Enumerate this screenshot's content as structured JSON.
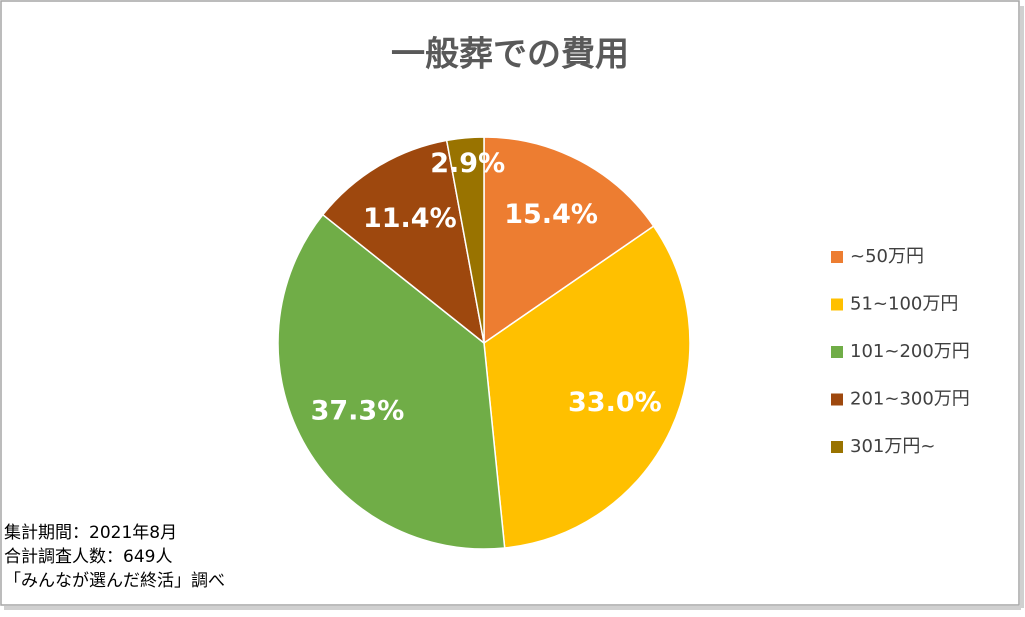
{
  "chart_data": {
    "type": "pie",
    "title": "一般葬での費用",
    "categories": [
      "~50万円",
      "51~100万円",
      "101~200万円",
      "201~300万円",
      "301万円~"
    ],
    "values": [
      15.4,
      33.0,
      37.3,
      11.4,
      2.9
    ],
    "value_labels": [
      "15.4%",
      "33.0%",
      "37.3%",
      "11.4%",
      "2.9%"
    ],
    "colors": [
      "#ED7D31",
      "#FFC000",
      "#70AD47",
      "#9E480E",
      "#997300"
    ],
    "legend": "right",
    "notes": [
      "集計期間：2021年8月",
      "合計調査人数：649人",
      "「みんなが選んだ終活」調べ"
    ]
  }
}
